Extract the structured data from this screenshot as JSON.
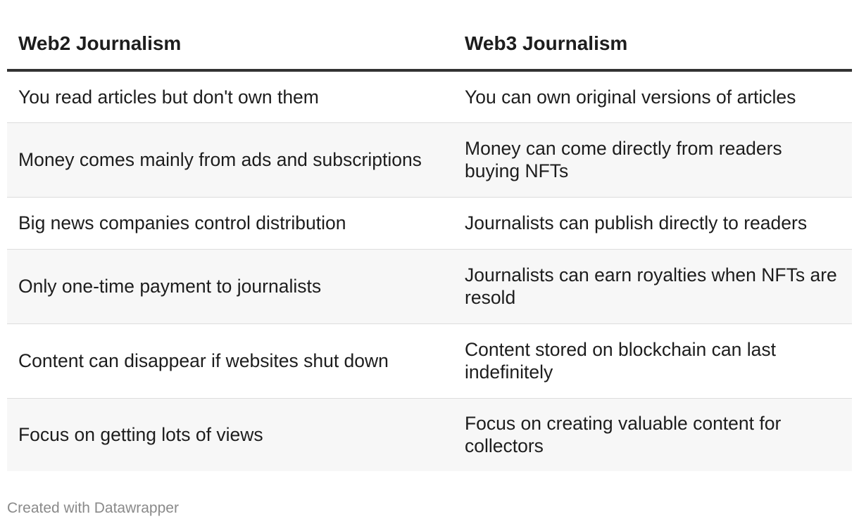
{
  "chart_data": {
    "type": "table",
    "columns": [
      "Web2 Journalism",
      "Web3 Journalism"
    ],
    "rows": [
      [
        "You read articles but don't own them",
        "You can own original versions of articles"
      ],
      [
        "Money comes mainly from ads and subscriptions",
        "Money can come directly from readers buying NFTs"
      ],
      [
        "Big news companies control distribution",
        "Journalists can publish directly to readers"
      ],
      [
        "Only one-time payment to journalists",
        "Journalists can earn royalties when NFTs are resold"
      ],
      [
        "Content can disappear if websites shut down",
        "Content stored on blockchain can last indefinitely"
      ],
      [
        "Focus on getting lots of views",
        "Focus on creating valuable content for collectors"
      ]
    ],
    "striped_rows": true
  },
  "footer": {
    "credit": "Created with Datawrapper"
  },
  "colors": {
    "header_rule": "#333333",
    "stripe": "#f7f7f7",
    "divider": "#dddddd",
    "footer_text": "#8a8a8a"
  }
}
